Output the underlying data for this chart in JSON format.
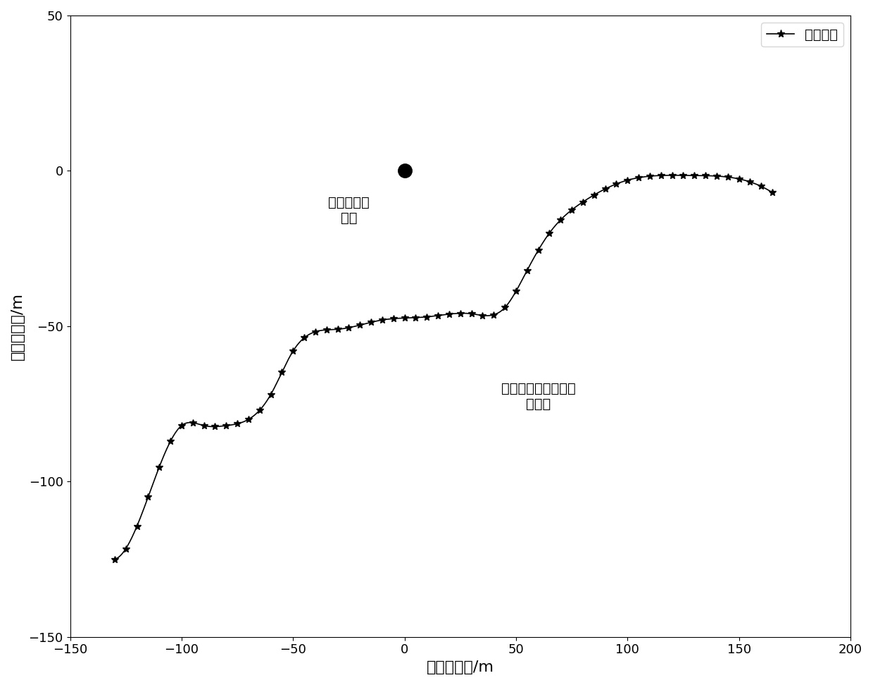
{
  "beacon_x": 0,
  "beacon_y": 0,
  "beacon_label": "水下单信标\n位置",
  "trajectory_annotation": "水下航行器的目标航\n行轨迹",
  "legend_label": "实际轨迹",
  "xlabel": "东向：位置/m",
  "ylabel": "北向：位置/m",
  "xlim": [
    -150,
    200
  ],
  "ylim": [
    -150,
    50
  ],
  "xticks": [
    -150,
    -100,
    -50,
    0,
    50,
    100,
    150,
    200
  ],
  "yticks": [
    -150,
    -100,
    -50,
    0,
    50
  ],
  "line_color": "#000000",
  "background_color": "#ffffff",
  "marker": "*",
  "markersize": 7,
  "linewidth": 1.2
}
